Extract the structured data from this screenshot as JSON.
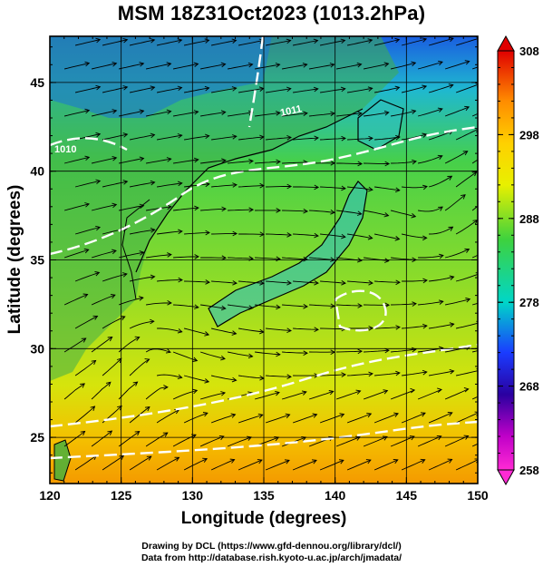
{
  "title": "MSM 18Z31Oct2023 (1013.2hPa)",
  "map": {
    "xlabel": "Longitude (degrees)",
    "ylabel": "Latitude  (degrees)",
    "lon_range": [
      120,
      150
    ],
    "lat_range": [
      22.4,
      47.6
    ],
    "lon_ticks": [
      "120",
      "125",
      "130",
      "135",
      "140",
      "145",
      "150"
    ],
    "lon_tick_values": [
      120,
      125,
      130,
      135,
      140,
      145,
      150
    ],
    "lat_ticks": [
      "25",
      "30",
      "35",
      "40",
      "45"
    ],
    "lat_tick_values": [
      25,
      30,
      35,
      40,
      45
    ]
  },
  "colorbar": {
    "labels": [
      "308",
      "298",
      "288",
      "278",
      "268",
      "258"
    ],
    "values": [
      308,
      298,
      288,
      278,
      268,
      258
    ],
    "range": [
      258,
      308
    ],
    "colors": [
      "#e00000",
      "#ff8c00",
      "#f4f000",
      "#3ed23e",
      "#00d6c8",
      "#1a3cff",
      "#2a00a0",
      "#c000c8",
      "#ff2ad4"
    ]
  },
  "contour_labels": [
    "1010",
    "1011"
  ],
  "credits": {
    "line1": "Drawing by DCL (https://www.gfd-dennou.org/library/dcl/)",
    "line2": "Data from http://database.rish.kyoto-u.ac.jp/arch/jmadata/"
  }
}
